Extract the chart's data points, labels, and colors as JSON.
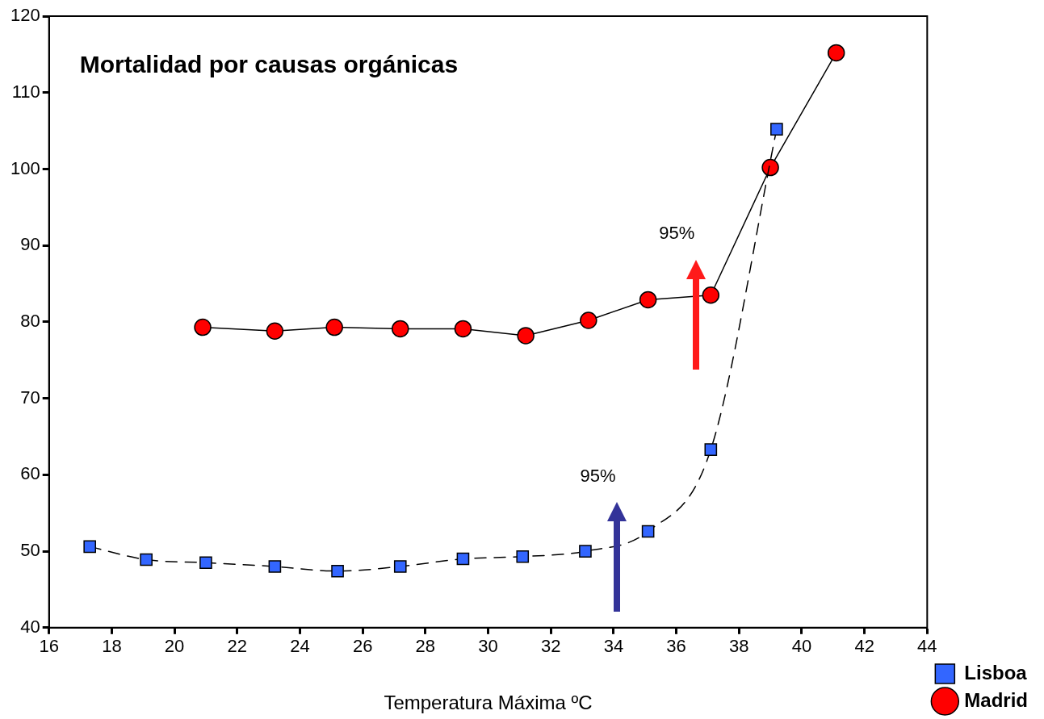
{
  "chart_data": {
    "type": "line",
    "title": "Mortalidad por causas orgánicas",
    "xlabel": "Temperatura Máxima ºC",
    "xlim": [
      16,
      44
    ],
    "xticks": [
      16,
      18,
      20,
      22,
      24,
      26,
      28,
      30,
      32,
      34,
      36,
      38,
      40,
      42,
      44
    ],
    "ylim": [
      40,
      120
    ],
    "yticks": [
      40,
      50,
      60,
      70,
      80,
      90,
      100,
      110,
      120
    ],
    "grid": false,
    "legend": "bottom right",
    "series": [
      {
        "name": "Lisboa",
        "color": "#3366ff",
        "marker": "square",
        "line_style": "dashed",
        "x": [
          17.3,
          19.1,
          21,
          23.2,
          25.2,
          27.2,
          29.2,
          31.1,
          33.1,
          35.1,
          37.1,
          39.2
        ],
        "values": [
          50.6,
          48.9,
          48.5,
          48,
          47.4,
          48,
          49,
          49.3,
          50,
          52.6,
          63.3,
          105.2
        ]
      },
      {
        "name": "Madrid",
        "color": "#ff0000",
        "marker": "circle",
        "line_style": "solid",
        "x": [
          20.9,
          23.2,
          25.1,
          27.2,
          29.2,
          31.2,
          33.2,
          35.1,
          37.1,
          39,
          41.1
        ],
        "values": [
          79.3,
          78.8,
          79.3,
          79.1,
          79.1,
          78.2,
          80.2,
          82.9,
          83.5,
          100.2,
          115.2
        ]
      }
    ],
    "annotations": [
      "95%",
      "95%"
    ]
  }
}
